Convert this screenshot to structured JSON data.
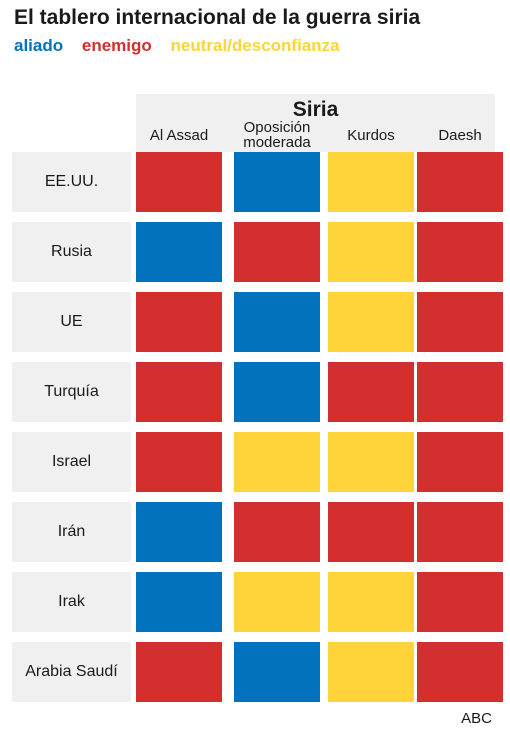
{
  "title": "El tablero internacional de la guerra siria",
  "legend": [
    {
      "key": "aliado",
      "label": "aliado",
      "color": "#0272bf"
    },
    {
      "key": "enemigo",
      "label": "enemigo",
      "color": "#d32f2f"
    },
    {
      "key": "neutral",
      "label": "neutral/desconfianza",
      "color": "#fed43a"
    }
  ],
  "source": "ABC",
  "chart_data": {
    "type": "table",
    "column_group": "Siria",
    "columns": [
      "Al Assad",
      "Oposición moderada",
      "Kurdos",
      "Daesh"
    ],
    "rows": [
      "EE.UU.",
      "Rusia",
      "UE",
      "Turquía",
      "Israel",
      "Irán",
      "Irak",
      "Arabia Saudí"
    ],
    "values": [
      [
        "enemigo",
        "aliado",
        "neutral",
        "enemigo"
      ],
      [
        "aliado",
        "enemigo",
        "neutral",
        "enemigo"
      ],
      [
        "enemigo",
        "aliado",
        "neutral",
        "enemigo"
      ],
      [
        "enemigo",
        "aliado",
        "enemigo",
        "enemigo"
      ],
      [
        "enemigo",
        "neutral",
        "neutral",
        "enemigo"
      ],
      [
        "aliado",
        "enemigo",
        "enemigo",
        "enemigo"
      ],
      [
        "aliado",
        "neutral",
        "neutral",
        "enemigo"
      ],
      [
        "enemigo",
        "aliado",
        "neutral",
        "enemigo"
      ]
    ]
  }
}
